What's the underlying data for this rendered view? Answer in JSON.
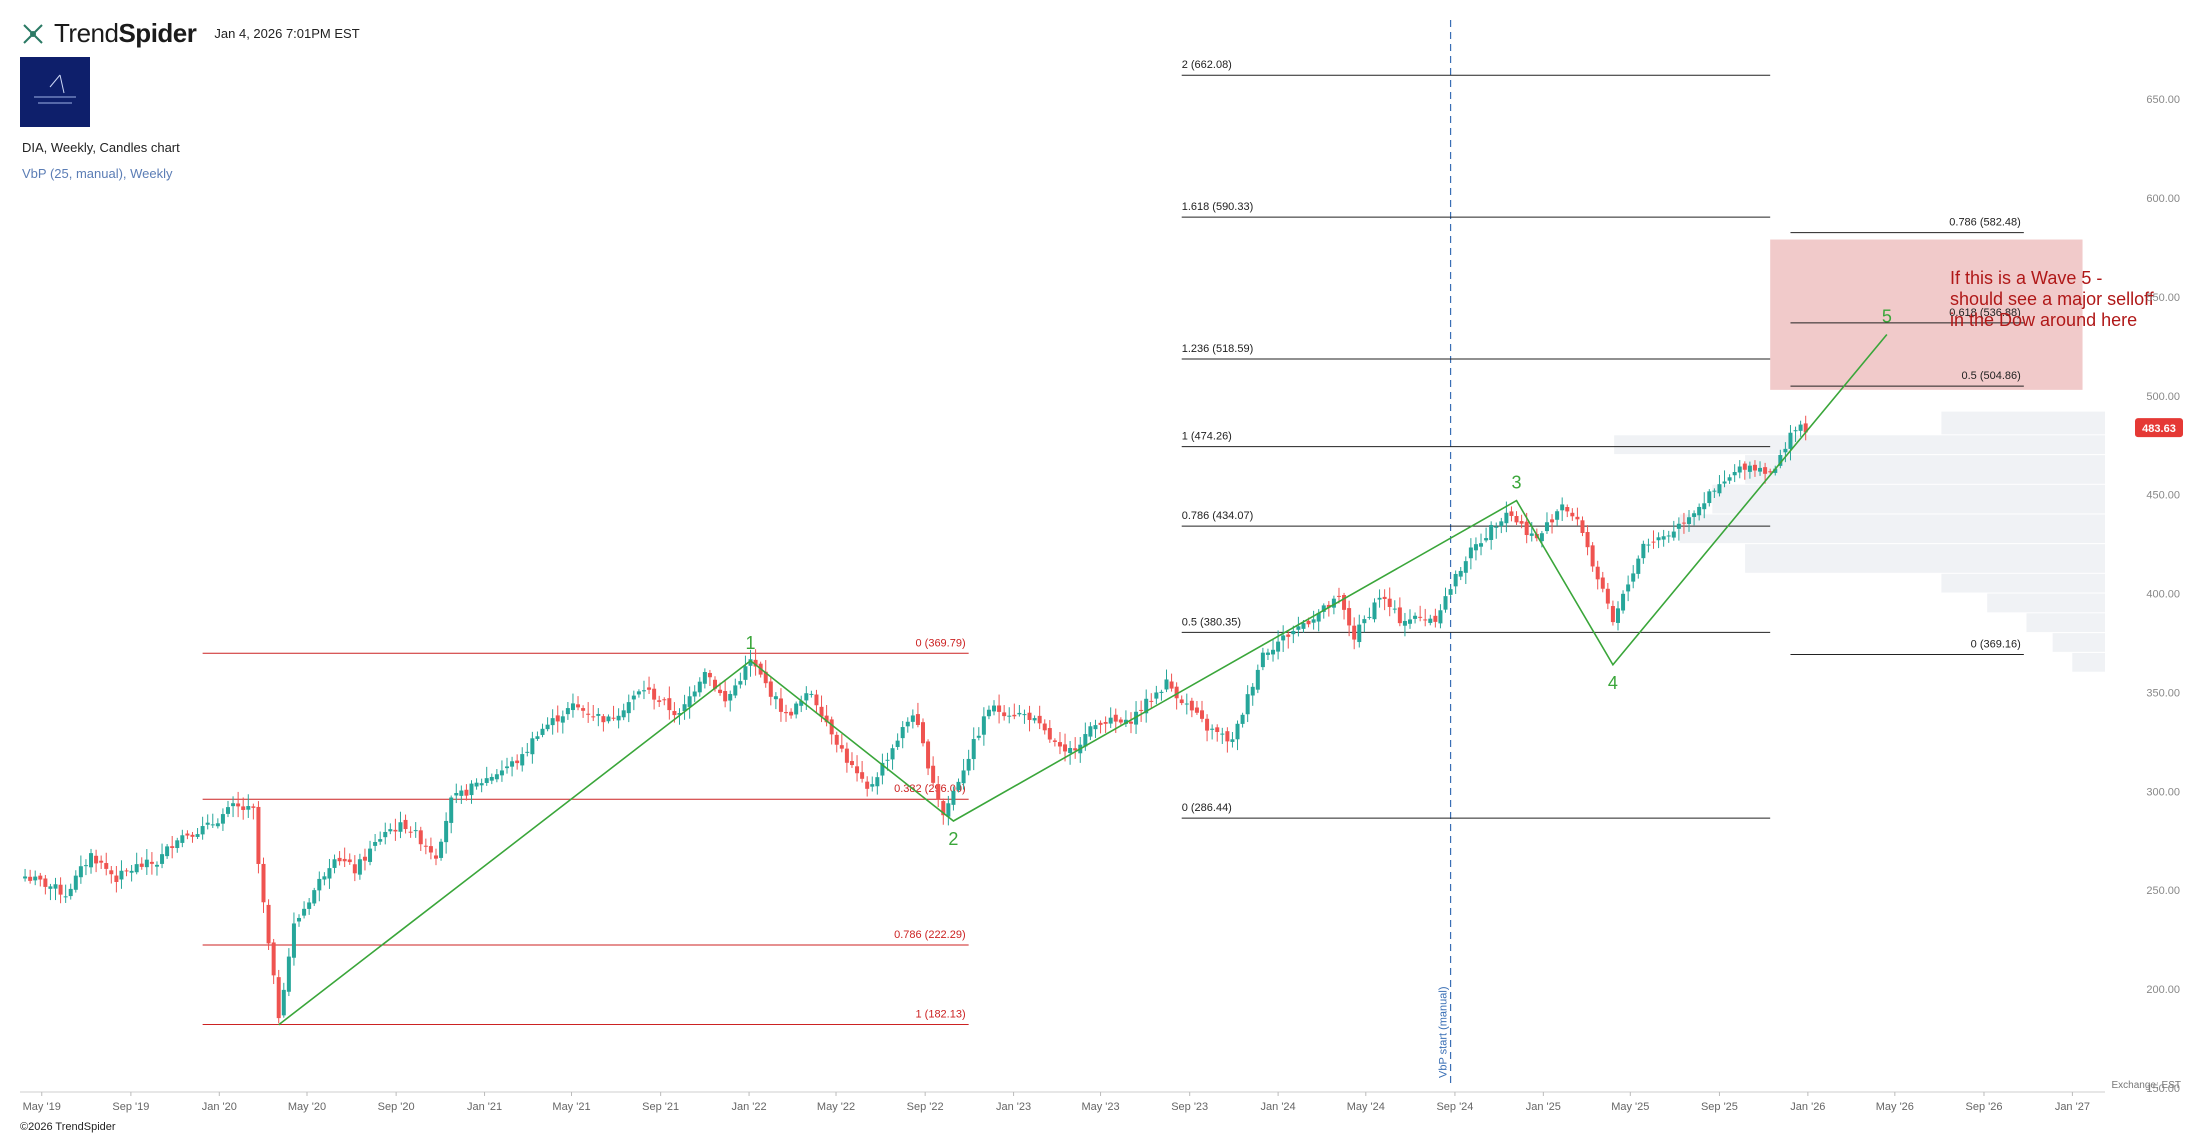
{
  "header": {
    "brand_prefix": "Trend",
    "brand_suffix": "Spider",
    "timestamp": "Jan 4, 2026 7:01PM EST"
  },
  "chart_title": "DIA, Weekly, Candles chart",
  "indicator": "VbP (25, manual), Weekly",
  "footer": {
    "copyright": "©2026 TrendSpider",
    "exchange": "Exchange: EST"
  },
  "colors": {
    "up_candle": "#26a69a",
    "down_candle": "#ef5350",
    "wave_line": "#3aa63a",
    "red_fib": "#cc2222",
    "black_fib": "#222222",
    "vbp_start": "#3a6fb5",
    "target_zone": "#efc4c4",
    "price_badge": "#e53935"
  },
  "chart_data": {
    "type": "candlestick",
    "symbol": "DIA",
    "timeframe": "Weekly",
    "x_range": [
      "2019-04-01",
      "2027-02-15"
    ],
    "ylim": [
      150,
      690
    ],
    "x_ticks": [
      {
        "date": "2019-05-01",
        "label": "May '19"
      },
      {
        "date": "2019-09-01",
        "label": "Sep '19"
      },
      {
        "date": "2020-01-01",
        "label": "Jan '20"
      },
      {
        "date": "2020-05-01",
        "label": "May '20"
      },
      {
        "date": "2020-09-01",
        "label": "Sep '20"
      },
      {
        "date": "2021-01-01",
        "label": "Jan '21"
      },
      {
        "date": "2021-05-01",
        "label": "May '21"
      },
      {
        "date": "2021-09-01",
        "label": "Sep '21"
      },
      {
        "date": "2022-01-01",
        "label": "Jan '22"
      },
      {
        "date": "2022-05-01",
        "label": "May '22"
      },
      {
        "date": "2022-09-01",
        "label": "Sep '22"
      },
      {
        "date": "2023-01-01",
        "label": "Jan '23"
      },
      {
        "date": "2023-05-01",
        "label": "May '23"
      },
      {
        "date": "2023-09-01",
        "label": "Sep '23"
      },
      {
        "date": "2024-01-01",
        "label": "Jan '24"
      },
      {
        "date": "2024-05-01",
        "label": "May '24"
      },
      {
        "date": "2024-09-01",
        "label": "Sep '24"
      },
      {
        "date": "2025-01-01",
        "label": "Jan '25"
      },
      {
        "date": "2025-05-01",
        "label": "May '25"
      },
      {
        "date": "2025-09-01",
        "label": "Sep '25"
      },
      {
        "date": "2026-01-01",
        "label": "Jan '26"
      },
      {
        "date": "2026-05-01",
        "label": "May '26"
      },
      {
        "date": "2026-09-01",
        "label": "Sep '26"
      },
      {
        "date": "2027-01-01",
        "label": "Jan '27"
      }
    ],
    "y_ticks": [
      {
        "value": 150,
        "label": "150.00"
      },
      {
        "value": 200,
        "label": "200.00"
      },
      {
        "value": 250,
        "label": "250.00"
      },
      {
        "value": 300,
        "label": "300.00"
      },
      {
        "value": 350,
        "label": "350.00"
      },
      {
        "value": 400,
        "label": "400.00"
      },
      {
        "value": 450,
        "label": "450.00"
      },
      {
        "value": 500,
        "label": "500.00"
      },
      {
        "value": 550,
        "label": "550.00"
      },
      {
        "value": 600,
        "label": "600.00"
      },
      {
        "value": 650,
        "label": "650.00"
      }
    ],
    "last_price": {
      "value": 483.63,
      "label": "483.63"
    },
    "price_path": [
      [
        "2019-04-08",
        257
      ],
      [
        "2019-05-13",
        252
      ],
      [
        "2019-06-03",
        248
      ],
      [
        "2019-07-08",
        268
      ],
      [
        "2019-08-12",
        256
      ],
      [
        "2019-09-09",
        262
      ],
      [
        "2019-10-07",
        264
      ],
      [
        "2019-11-04",
        277
      ],
      [
        "2019-12-16",
        282
      ],
      [
        "2020-01-20",
        292
      ],
      [
        "2020-02-17",
        290
      ],
      [
        "2020-02-24",
        263
      ],
      [
        "2020-03-09",
        222
      ],
      [
        "2020-03-23",
        187
      ],
      [
        "2020-04-13",
        232
      ],
      [
        "2020-06-08",
        268
      ],
      [
        "2020-07-06",
        260
      ],
      [
        "2020-08-17",
        280
      ],
      [
        "2020-09-14",
        283
      ],
      [
        "2020-10-26",
        268
      ],
      [
        "2020-11-16",
        295
      ],
      [
        "2020-12-28",
        305
      ],
      [
        "2021-02-22",
        317
      ],
      [
        "2021-03-15",
        330
      ],
      [
        "2021-05-03",
        343
      ],
      [
        "2021-06-21",
        336
      ],
      [
        "2021-08-09",
        352
      ],
      [
        "2021-09-27",
        338
      ],
      [
        "2021-11-01",
        362
      ],
      [
        "2021-11-29",
        345
      ],
      [
        "2022-01-03",
        366
      ],
      [
        "2022-02-21",
        338
      ],
      [
        "2022-03-28",
        350
      ],
      [
        "2022-05-16",
        316
      ],
      [
        "2022-06-13",
        300
      ],
      [
        "2022-08-15",
        340
      ],
      [
        "2022-09-26",
        288
      ],
      [
        "2022-11-28",
        342
      ],
      [
        "2023-01-23",
        338
      ],
      [
        "2023-03-13",
        318
      ],
      [
        "2023-05-01",
        336
      ],
      [
        "2023-06-05",
        334
      ],
      [
        "2023-07-31",
        355
      ],
      [
        "2023-09-25",
        332
      ],
      [
        "2023-10-30",
        325
      ],
      [
        "2023-12-11",
        370
      ],
      [
        "2024-02-05",
        385
      ],
      [
        "2024-03-25",
        397
      ],
      [
        "2024-04-15",
        378
      ],
      [
        "2024-05-20",
        399
      ],
      [
        "2024-06-17",
        387
      ],
      [
        "2024-08-05",
        388
      ],
      [
        "2024-09-16",
        418
      ],
      [
        "2024-11-11",
        442
      ],
      [
        "2024-12-23",
        427
      ],
      [
        "2025-01-27",
        446
      ],
      [
        "2025-02-24",
        432
      ],
      [
        "2025-03-10",
        415
      ],
      [
        "2025-04-07",
        385
      ],
      [
        "2025-05-19",
        425
      ],
      [
        "2025-06-23",
        430
      ],
      [
        "2025-08-11",
        447
      ],
      [
        "2025-10-06",
        465
      ],
      [
        "2025-11-17",
        462
      ],
      [
        "2025-12-08",
        482
      ],
      [
        "2025-12-29",
        483.63
      ]
    ],
    "fib_sets": [
      {
        "color": "red",
        "x_start": "2019-12-09",
        "x_end": "2022-10-31",
        "levels": [
          {
            "value": 369.79,
            "label": "0 (369.79)"
          },
          {
            "value": 296.0,
            "label": "0.382 (296.00)"
          },
          {
            "value": 222.29,
            "label": "0.786 (222.29)"
          },
          {
            "value": 182.13,
            "label": "1 (182.13)"
          }
        ]
      },
      {
        "color": "black",
        "x_start": "2023-08-21",
        "x_end": "2025-11-10",
        "label_align": "left",
        "levels": [
          {
            "value": 662.08,
            "label": "2 (662.08)"
          },
          {
            "value": 590.33,
            "label": "1.618 (590.33)"
          },
          {
            "value": 518.59,
            "label": "1.236 (518.59)"
          },
          {
            "value": 474.26,
            "label": "1 (474.26)"
          },
          {
            "value": 434.07,
            "label": "0.786 (434.07)"
          },
          {
            "value": 380.35,
            "label": "0.5 (380.35)"
          },
          {
            "value": 286.44,
            "label": "0 (286.44)"
          }
        ]
      },
      {
        "color": "black",
        "x_start": "2025-12-08",
        "x_end": "2026-10-26",
        "label_align": "right",
        "levels": [
          {
            "value": 582.48,
            "label": "0.786 (582.48)"
          },
          {
            "value": 536.88,
            "label": "0.618 (536.88)"
          },
          {
            "value": 504.86,
            "label": "0.5 (504.86)"
          },
          {
            "value": 369.16,
            "label": "0 (369.16)"
          }
        ]
      }
    ],
    "waves": [
      {
        "label": "1",
        "date": "2022-01-03",
        "value": 366,
        "label_pos": "above"
      },
      {
        "label": "2",
        "date": "2022-10-10",
        "value": 285,
        "label_pos": "below"
      },
      {
        "label": "3",
        "date": "2024-11-25",
        "value": 447,
        "label_pos": "above"
      },
      {
        "label": "4",
        "date": "2025-04-07",
        "value": 364,
        "label_pos": "below"
      },
      {
        "label": "5",
        "date": "2026-04-20",
        "value": 531,
        "label_pos": "above"
      }
    ],
    "wave_path": [
      [
        "2020-03-23",
        182
      ],
      [
        "2022-01-03",
        366
      ],
      [
        "2022-10-10",
        285
      ],
      [
        "2024-11-25",
        447
      ],
      [
        "2025-04-07",
        364
      ],
      [
        "2026-04-20",
        531
      ]
    ],
    "vbp_start": {
      "date": "2024-08-26",
      "label": "VbP start (manual)"
    },
    "target_zone": {
      "x_start": "2025-11-10",
      "x_end": "2027-01-15",
      "y_low": 503,
      "y_high": 579
    },
    "annotation": {
      "lines": [
        "If this is a Wave 5 -",
        "should see a major selloff",
        "in the Dow around here"
      ]
    },
    "volume_profile": [
      [
        440,
        455,
        0.6
      ],
      [
        455,
        470,
        0.55
      ],
      [
        470,
        480,
        0.75
      ],
      [
        480,
        492,
        0.25
      ],
      [
        425,
        440,
        0.65
      ],
      [
        410,
        425,
        0.55
      ],
      [
        400,
        410,
        0.25
      ],
      [
        390,
        400,
        0.18
      ],
      [
        380,
        390,
        0.12
      ],
      [
        370,
        380,
        0.08
      ],
      [
        360,
        370,
        0.05
      ]
    ]
  }
}
